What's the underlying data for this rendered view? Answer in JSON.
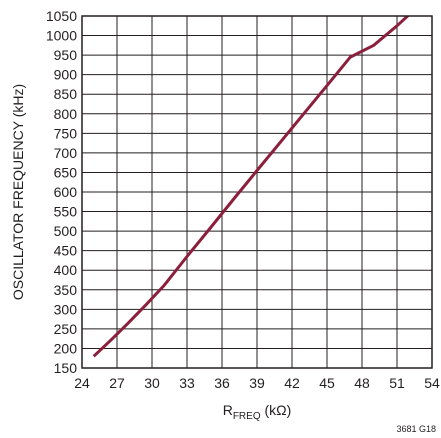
{
  "chart_data": {
    "type": "line",
    "title": "",
    "xlabel": "R",
    "xlabel_sub": "FREQ",
    "xlabel_unit": " (kΩ)",
    "ylabel": "OSCILLATOR FREQUENCY (kHz)",
    "xlim": [
      24,
      54
    ],
    "ylim": [
      150,
      1050
    ],
    "x_ticks": [
      "24",
      "27",
      "30",
      "33",
      "36",
      "39",
      "42",
      "45",
      "48",
      "51",
      "54"
    ],
    "y_ticks": [
      "150",
      "200",
      "250",
      "300",
      "350",
      "400",
      "450",
      "500",
      "550",
      "600",
      "650",
      "700",
      "750",
      "800",
      "850",
      "900",
      "950",
      "1000",
      "1050"
    ],
    "grid": true,
    "series": [
      {
        "color": "#8b1f3c",
        "x": [
          25,
          26.5,
          28,
          29.5,
          31,
          33,
          35,
          37,
          39,
          41,
          43,
          45,
          47,
          49,
          51,
          52.1
        ],
        "y": [
          180,
          222,
          266,
          312,
          360,
          435,
          508,
          582,
          655,
          727,
          800,
          872,
          945,
          975,
          1025,
          1055
        ]
      }
    ],
    "figure_id": "3681 G18"
  }
}
